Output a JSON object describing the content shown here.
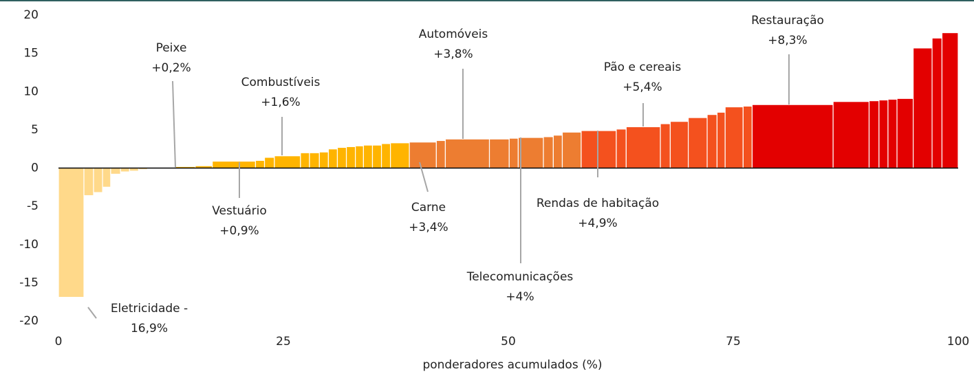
{
  "chart_data": {
    "type": "histogram",
    "xlabel": "ponderadores acumulados (%)",
    "bins": [
      0,
      2.83,
      3.9,
      4.9,
      5.8,
      6.9,
      7.9,
      8.9,
      9.9,
      10.9,
      12.9,
      15.2,
      17.1,
      21.9,
      22.9,
      24.0,
      26.9,
      27.9,
      29.0,
      30.0,
      31.0,
      32.0,
      33.0,
      33.9,
      34.9,
      35.9,
      36.9,
      39.0,
      42.0,
      43.0,
      47.9,
      50.1,
      51.1,
      53.9,
      55.0,
      56.0,
      58.1,
      62.0,
      63.1,
      66.9,
      68.0,
      70.0,
      72.1,
      73.2,
      74.1,
      76.1,
      77.1,
      86.1,
      90.1,
      91.2,
      92.2,
      93.2,
      95.0,
      97.1,
      98.2,
      100
    ],
    "values": [
      -16.9,
      -3.6,
      -3.2,
      -2.5,
      -0.8,
      -0.5,
      -0.4,
      -0.2,
      -0.1,
      0.1,
      0.2,
      0.3,
      0.9,
      1.0,
      1.4,
      1.6,
      2.0,
      2.0,
      2.1,
      2.5,
      2.7,
      2.8,
      2.9,
      3.0,
      3.0,
      3.2,
      3.3,
      3.4,
      3.6,
      3.8,
      3.8,
      3.9,
      4.0,
      4.1,
      4.3,
      4.7,
      4.9,
      5.1,
      5.4,
      5.8,
      6.1,
      6.6,
      7.0,
      7.3,
      8.0,
      8.1,
      8.3,
      8.7,
      8.8,
      8.9,
      9.0,
      9.1,
      15.7,
      17.0,
      17.7
    ],
    "colors": [
      "#ffd98a",
      "#ffd98a",
      "#ffd98a",
      "#ffd98a",
      "#ffd98a",
      "#ffd98a",
      "#ffd98a",
      "#ffd98a",
      "#ffd98a",
      "#ffb400",
      "#ffb400",
      "#ffb400",
      "#ffb400",
      "#ffb400",
      "#ffb400",
      "#ffb400",
      "#ffb400",
      "#ffb400",
      "#ffb400",
      "#ffb400",
      "#ffb400",
      "#ffb400",
      "#ffb400",
      "#ffb400",
      "#ffb400",
      "#ffb400",
      "#ffb400",
      "#ed7d31",
      "#ed7d31",
      "#ed7d31",
      "#ed7d31",
      "#ed7d31",
      "#ed7d31",
      "#ed7d31",
      "#ed7d31",
      "#ed7d31",
      "#f4511e",
      "#f4511e",
      "#f4511e",
      "#f4511e",
      "#f4511e",
      "#f4511e",
      "#f4511e",
      "#f4511e",
      "#f4511e",
      "#f4511e",
      "#e30000",
      "#e30000",
      "#e30000",
      "#e30000",
      "#e30000",
      "#e30000",
      "#e30000",
      "#e30000",
      "#e30000"
    ],
    "labels": [
      "Eletricidade -",
      null,
      null,
      null,
      null,
      null,
      null,
      null,
      null,
      null,
      "Peixe",
      null,
      "Vestuário",
      null,
      null,
      "Combustíveis",
      null,
      null,
      null,
      null,
      null,
      null,
      null,
      null,
      null,
      null,
      null,
      "Carne",
      null,
      "Automóveis",
      null,
      null,
      "Telecomunicações",
      null,
      null,
      null,
      "Rendas de habitação",
      null,
      "Pão e cereais",
      null,
      null,
      null,
      null,
      null,
      null,
      null,
      "Restauração",
      null,
      null,
      null,
      null,
      null,
      null,
      null,
      null
    ],
    "value_labels": [
      "16,9%",
      null,
      null,
      null,
      null,
      null,
      null,
      null,
      null,
      null,
      "+0,2%",
      null,
      "+0,9%",
      null,
      null,
      "+1,6%",
      null,
      null,
      null,
      null,
      null,
      null,
      null,
      null,
      null,
      null,
      null,
      "+3,4%",
      null,
      "+3,8%",
      null,
      null,
      "+4%",
      null,
      null,
      null,
      "+4,9%",
      null,
      "+5,4%",
      null,
      null,
      null,
      null,
      null,
      null,
      null,
      "+8,3%",
      null,
      null,
      null,
      null,
      null,
      null,
      null,
      null
    ],
    "xlim": [
      0,
      100
    ],
    "xticks": [
      0,
      25,
      50,
      75,
      100
    ],
    "ylim": [
      -20,
      20
    ],
    "yticks": [
      -20,
      -15,
      -10,
      -5,
      0,
      5,
      10,
      15,
      20
    ]
  }
}
